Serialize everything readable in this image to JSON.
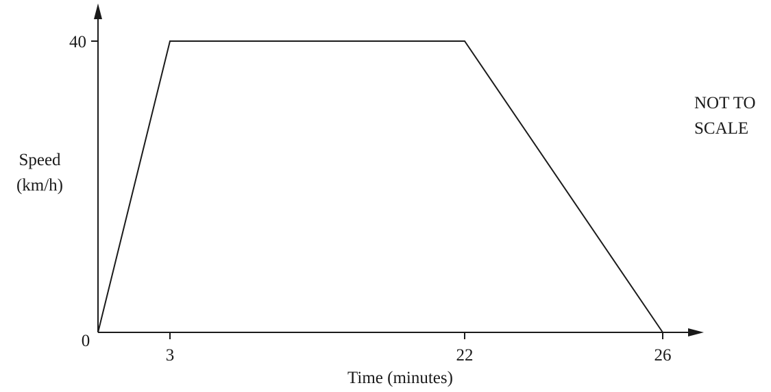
{
  "chart_data": {
    "type": "line",
    "xlabel": "Time (minutes)",
    "ylabel_lines": [
      "Speed",
      "(km/h)"
    ],
    "annotation_lines": [
      "NOT TO",
      "SCALE"
    ],
    "origin_label": "0",
    "x_ticks": [
      "3",
      "22",
      "26"
    ],
    "y_ticks": [
      "40"
    ],
    "series": [
      {
        "points": [
          {
            "x": 0,
            "y": 0
          },
          {
            "x": 3,
            "y": 40
          },
          {
            "x": 22,
            "y": 40
          },
          {
            "x": 26,
            "y": 0
          }
        ]
      }
    ],
    "grid": false,
    "line_color": "#1a1a1a"
  }
}
